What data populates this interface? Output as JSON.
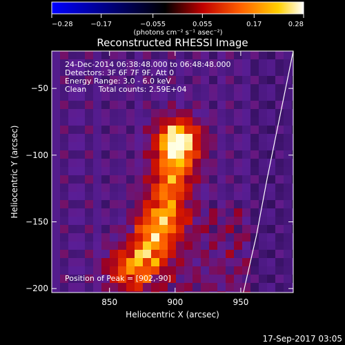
{
  "chart_data": {
    "type": "heatmap",
    "title": "Reconstructed RHESSI Image",
    "xlabel": "Heliocentric X (arcsec)",
    "ylabel": "Heliocentric Y (arcsec)",
    "xlim": [
      806,
      990
    ],
    "ylim": [
      -203,
      -22
    ],
    "x_ticks": [
      {
        "value": 850,
        "label": "850"
      },
      {
        "value": 900,
        "label": "900"
      },
      {
        "value": 950,
        "label": "950"
      }
    ],
    "y_ticks": [
      {
        "value": -50,
        "label": "−50"
      },
      {
        "value": -100,
        "label": "−100"
      },
      {
        "value": -150,
        "label": "−150"
      },
      {
        "value": -200,
        "label": "−200"
      }
    ],
    "colorbar": {
      "range": [
        -0.28,
        0.28
      ],
      "ticks": [
        {
          "value": -0.28,
          "label": "−0.28"
        },
        {
          "value": -0.17,
          "label": "−0.17"
        },
        {
          "value": -0.055,
          "label": "−0.055"
        },
        {
          "value": 0.055,
          "label": "0.055"
        },
        {
          "value": 0.17,
          "label": "0.17"
        },
        {
          "value": 0.28,
          "label": "0.28"
        }
      ],
      "unit_label": "(photons cm⁻² s⁻¹ asec⁻²)",
      "colors": [
        "#0000ff",
        "#000000",
        "#c00000",
        "#ff6000",
        "#ffd000",
        "#ffffff"
      ]
    },
    "annotations": [
      "24-Dec-2014 06:38:48.000 to 06:48:48.000",
      "Detectors: 3F 6F 7F 9F, Att 0",
      "Energy Range: 3.0 - 6.0 keV",
      "Clean     Total counts: 2.59E+04"
    ],
    "peak_label": "Position of Peak = [902,-90]",
    "peak": [
      902,
      -90
    ],
    "limb_curve": [
      [
        990,
        -22
      ],
      [
        980,
        -70
      ],
      [
        970,
        -118
      ],
      [
        962,
        -160
      ],
      [
        952,
        -203
      ]
    ],
    "source_ridge": [
      [
        902,
        -90
      ],
      [
        898,
        -115
      ],
      [
        890,
        -150
      ],
      [
        878,
        -175
      ],
      [
        865,
        -185
      ]
    ]
  },
  "footer": {
    "timestamp": "17-Sep-2017 03:05"
  }
}
